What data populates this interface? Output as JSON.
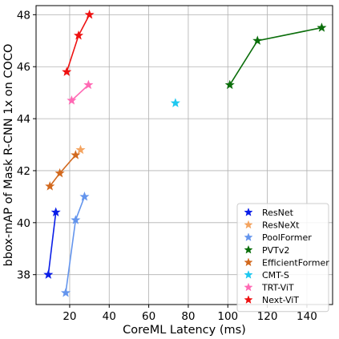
{
  "chart_data": {
    "type": "line",
    "title": "",
    "xlabel": "CoreML Latency (ms)",
    "ylabel": "bbox-mAP of Mask R-CNN 1x on COCO",
    "xlim": [
      3,
      153
    ],
    "ylim": [
      36.85,
      48.35
    ],
    "xticks": [
      20,
      40,
      60,
      80,
      100,
      120,
      140
    ],
    "yticks": [
      38,
      40,
      42,
      44,
      46,
      48
    ],
    "grid": true,
    "marker": "star",
    "legend_position": "bottom-right",
    "series": [
      {
        "name": "ResNet",
        "color": "#0a1ee8",
        "points": [
          [
            9.2,
            38.0
          ],
          [
            13.0,
            40.4
          ]
        ]
      },
      {
        "name": "ResNeXt",
        "color": "#f4a460",
        "points": [
          [
            25.5,
            42.8
          ]
        ]
      },
      {
        "name": "PoolFormer",
        "color": "#6495ed",
        "points": [
          [
            18.0,
            37.3
          ],
          [
            23.0,
            40.1
          ],
          [
            27.5,
            41.0
          ]
        ]
      },
      {
        "name": "PVTv2",
        "color": "#0b6e0b",
        "points": [
          [
            101.0,
            45.3
          ],
          [
            115.0,
            47.0
          ],
          [
            147.5,
            47.5
          ]
        ]
      },
      {
        "name": "EfficientFormer",
        "color": "#d2691e",
        "points": [
          [
            10.0,
            41.4
          ],
          [
            15.0,
            41.9
          ],
          [
            23.0,
            42.6
          ]
        ]
      },
      {
        "name": "CMT-S",
        "color": "#1ec8f0",
        "points": [
          [
            73.5,
            44.6
          ]
        ]
      },
      {
        "name": "TRT-ViT",
        "color": "#ff69b4",
        "points": [
          [
            21.0,
            44.7
          ],
          [
            29.5,
            45.3
          ]
        ]
      },
      {
        "name": "Next-ViT",
        "color": "#ee1111",
        "points": [
          [
            18.5,
            45.8
          ],
          [
            24.5,
            47.2
          ],
          [
            30.0,
            48.0
          ]
        ]
      }
    ]
  }
}
